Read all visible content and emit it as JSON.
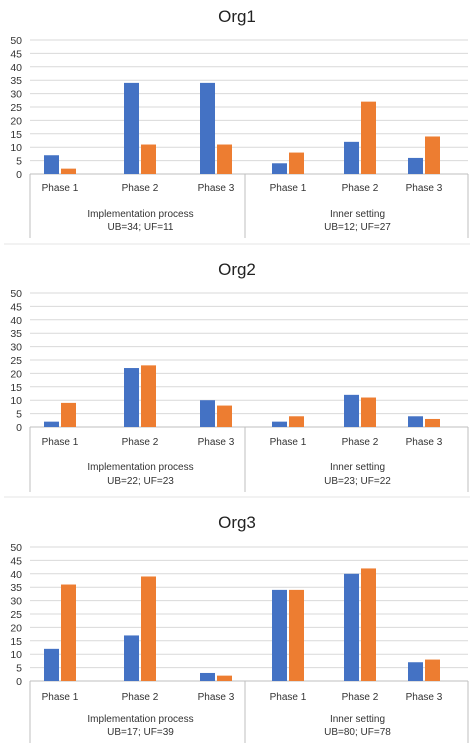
{
  "chart_data": [
    {
      "type": "bar",
      "title": "Org1",
      "ylim": [
        0,
        50
      ],
      "yticks": [
        0,
        5,
        10,
        15,
        20,
        25,
        30,
        35,
        40,
        45,
        50
      ],
      "grid": true,
      "colors": [
        "#4472c4",
        "#ed7d31"
      ],
      "groups": [
        {
          "label_line1": "Implementation process",
          "label_line2": "UB=34; UF=11",
          "categories": [
            "Phase 1",
            "Phase 2",
            "Phase 3"
          ]
        },
        {
          "label_line1": "Inner setting",
          "label_line2": "UB=12; UF=27",
          "categories": [
            "Phase 1",
            "Phase 2",
            "Phase 3"
          ]
        }
      ],
      "series": [
        {
          "values": [
            7,
            34,
            34,
            4,
            12,
            6
          ]
        },
        {
          "values": [
            2,
            11,
            11,
            8,
            27,
            14
          ]
        }
      ]
    },
    {
      "type": "bar",
      "title": "Org2",
      "ylim": [
        0,
        50
      ],
      "yticks": [
        0,
        5,
        10,
        15,
        20,
        25,
        30,
        35,
        40,
        45,
        50
      ],
      "grid": true,
      "colors": [
        "#4472c4",
        "#ed7d31"
      ],
      "groups": [
        {
          "label_line1": "Implementation process",
          "label_line2": "UB=22; UF=23",
          "categories": [
            "Phase 1",
            "Phase 2",
            "Phase 3"
          ]
        },
        {
          "label_line1": "Inner setting",
          "label_line2": "UB=23; UF=22",
          "categories": [
            "Phase 1",
            "Phase 2",
            "Phase 3"
          ]
        }
      ],
      "series": [
        {
          "values": [
            2,
            22,
            10,
            2,
            12,
            4
          ]
        },
        {
          "values": [
            9,
            23,
            8,
            4,
            11,
            3
          ]
        }
      ]
    },
    {
      "type": "bar",
      "title": "Org3",
      "ylim": [
        0,
        50
      ],
      "yticks": [
        0,
        5,
        10,
        15,
        20,
        25,
        30,
        35,
        40,
        45,
        50
      ],
      "grid": true,
      "colors": [
        "#4472c4",
        "#ed7d31"
      ],
      "groups": [
        {
          "label_line1": "Implementation process",
          "label_line2": "UB=17; UF=39",
          "categories": [
            "Phase 1",
            "Phase 2",
            "Phase 3"
          ]
        },
        {
          "label_line1": "Inner setting",
          "label_line2": "UB=80; UF=78",
          "categories": [
            "Phase 1",
            "Phase 2",
            "Phase 3"
          ]
        }
      ],
      "series": [
        {
          "values": [
            12,
            17,
            3,
            34,
            40,
            7
          ]
        },
        {
          "values": [
            36,
            39,
            2,
            34,
            42,
            8
          ]
        }
      ]
    }
  ]
}
